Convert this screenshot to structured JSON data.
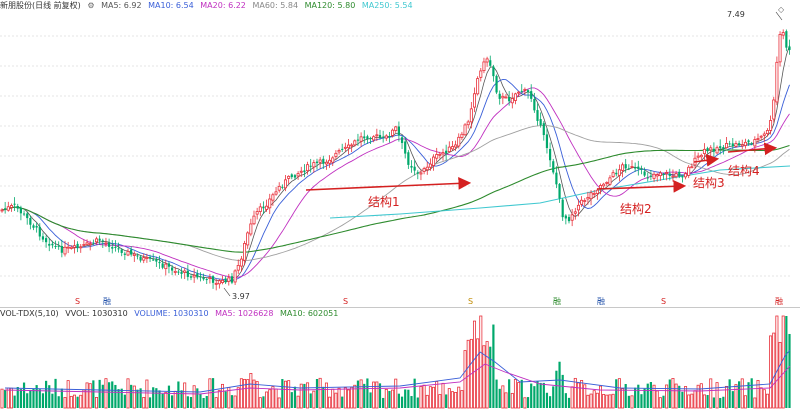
{
  "price_legend": {
    "stock_name": "新朋股份(日线 前复权)",
    "ma5": "MA5: 6.92",
    "ma10": "MA10: 6.54",
    "ma20": "MA20: 6.22",
    "ma60": "MA60: 5.84",
    "ma120": "MA120: 5.80",
    "ma250": "MA250: 5.54"
  },
  "volume_legend": {
    "title": "VOL-TDX(5,10)",
    "vvol": "VVOL: 1030310",
    "volume": "VOLUME: 1030310",
    "ma5": "MA5: 1026628",
    "ma10": "MA10: 602051"
  },
  "price_labels": {
    "high": "7.49",
    "low": "3.97"
  },
  "annotations": [
    {
      "label": "结构1"
    },
    {
      "label": "结构2"
    },
    {
      "label": "结构3"
    },
    {
      "label": "结构4"
    }
  ],
  "event_marks": [
    "S",
    "融",
    "S",
    "S",
    "融",
    "融",
    "融",
    "S",
    "融"
  ],
  "colors": {
    "up": "#e8303a",
    "down": "#00a86b",
    "ma5": "#555555",
    "ma10": "#3a5fd8",
    "ma20": "#c030c0",
    "ma60": "#a0a0a0",
    "ma120": "#2e8b2e",
    "ma250": "#40c8d0",
    "arrow": "#d42020"
  }
}
